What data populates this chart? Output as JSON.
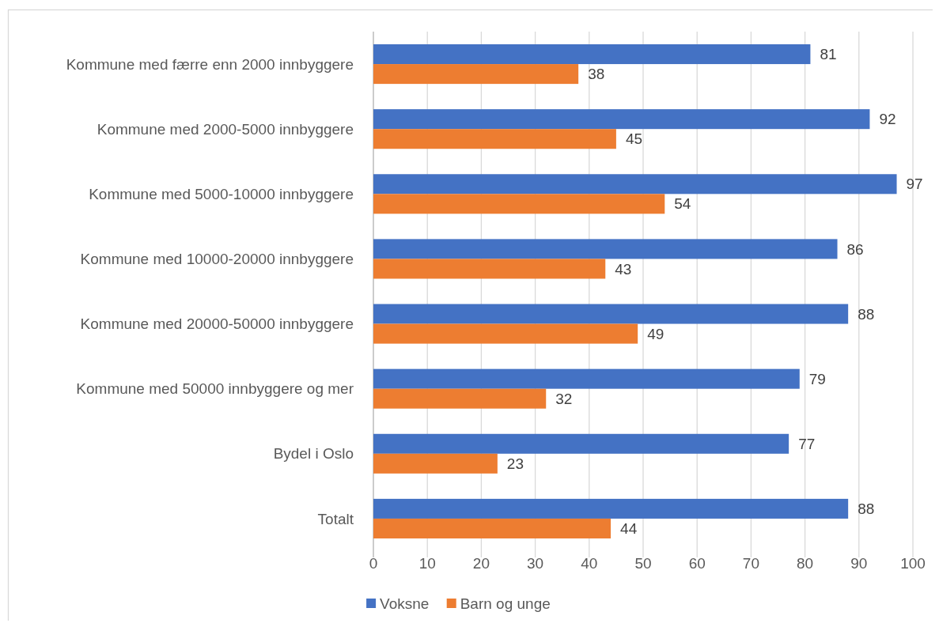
{
  "chart_data": {
    "type": "bar",
    "orientation": "horizontal",
    "categories": [
      "Kommune med færre enn 2000 innbyggere",
      "Kommune med 2000-5000 innbyggere",
      "Kommune med 5000-10000 innbyggere",
      "Kommune med 10000-20000 innbyggere",
      "Kommune med 20000-50000 innbyggere",
      "Kommune med 50000 innbyggere og mer",
      "Bydel i Oslo",
      "Totalt"
    ],
    "series": [
      {
        "name": "Voksne",
        "color": "#4472c4",
        "values": [
          81,
          92,
          97,
          86,
          88,
          79,
          77,
          88
        ]
      },
      {
        "name": "Barn og unge",
        "color": "#ed7d31",
        "values": [
          38,
          45,
          54,
          43,
          49,
          32,
          23,
          44
        ]
      }
    ],
    "xlim": [
      0,
      100
    ],
    "xticks": [
      0,
      10,
      20,
      30,
      40,
      50,
      60,
      70,
      80,
      90,
      100
    ],
    "grid": "x",
    "legend": "bottom",
    "data_labels": true
  }
}
